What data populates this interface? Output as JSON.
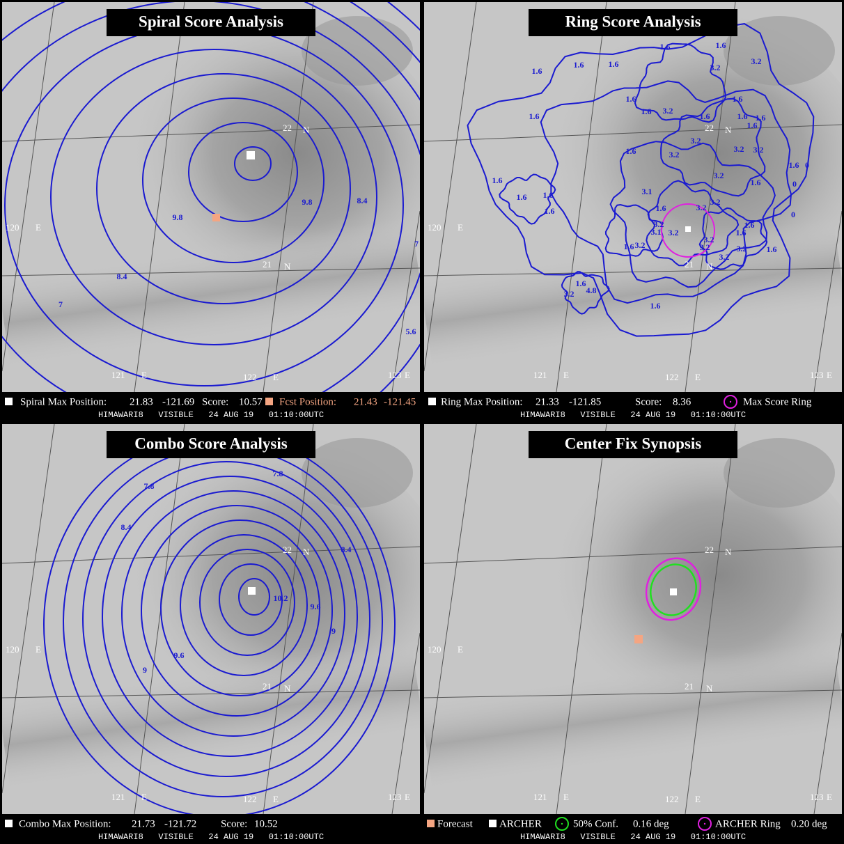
{
  "panels": [
    {
      "title": "Spiral Score Analysis",
      "grid_labels": [
        "120",
        "E",
        "121",
        "E",
        "122",
        "E",
        "123",
        "E",
        "22",
        "N",
        "21",
        "N"
      ],
      "contour_labels": [
        "9.8",
        "9.8",
        "8.4",
        "7",
        "8.4",
        "7",
        "5.6"
      ],
      "legend": [
        "Spiral Max Position:",
        "21.83",
        "-121.69",
        "Score:",
        "10.57",
        "Fcst Position:",
        "21.43",
        "-121.45"
      ],
      "caption": "HIMAWARI8   VISIBLE   24 AUG 19   01:10:00UTC"
    },
    {
      "title": "Ring Score Analysis",
      "grid_labels": [
        "120",
        "E",
        "121",
        "E",
        "122",
        "E",
        "123",
        "E",
        "22",
        "N",
        "21",
        "N"
      ],
      "contour_labels": [
        "1.6",
        "1.6",
        "1.6",
        "1.6",
        "1.6",
        "3.2",
        "3.2",
        "1.6",
        "1.6",
        "1.6",
        "3.2",
        "1.6",
        "1.6",
        "1.6",
        "1.6",
        "1.6",
        "3.2",
        "3.2",
        "3.2",
        "1.6",
        "3.2",
        "1.6",
        "0",
        "3.2",
        "1.6",
        "0",
        "1.6",
        "1.6",
        "1.6",
        "1.6",
        "3.1",
        "1.6",
        "3.2",
        "3.2",
        "0",
        "1.6",
        "3.2",
        "3.1",
        "3.2",
        "1.6",
        "3.2",
        "1.6",
        "3.2",
        "3.2",
        "1.6",
        "3.2",
        "3.2",
        "1.6",
        "3.2",
        "4.8",
        "1.6"
      ],
      "legend": [
        "Ring Max Position:",
        "21.33",
        "-121.85",
        "Score:",
        "8.36",
        "Max Score Ring"
      ],
      "caption": "HIMAWARI8   VISIBLE   24 AUG 19   01:10:00UTC"
    },
    {
      "title": "Combo Score Analysis",
      "grid_labels": [
        "120",
        "E",
        "121",
        "E",
        "122",
        "E",
        "123",
        "E",
        "22",
        "N",
        "21",
        "N"
      ],
      "contour_labels": [
        "7.8",
        "7.8",
        "8.4",
        "8.4",
        "10.2",
        "9.6",
        "9",
        "9.6",
        "9"
      ],
      "legend": [
        "Combo Max Position:",
        "21.73",
        "-121.72",
        "Score:",
        "10.52"
      ],
      "caption": "HIMAWARI8   VISIBLE   24 AUG 19   01:10:00UTC"
    },
    {
      "title": "Center Fix Synopsis",
      "grid_labels": [
        "120",
        "E",
        "121",
        "E",
        "122",
        "E",
        "123",
        "E",
        "22",
        "N",
        "21",
        "N"
      ],
      "contour_labels": [],
      "legend": [
        "Forecast",
        "ARCHER",
        "50% Conf.",
        "0.16 deg",
        "ARCHER Ring",
        "0.20 deg"
      ],
      "caption": "HIMAWARI8   VISIBLE   24 AUG 19   01:10:00UTC"
    }
  ]
}
